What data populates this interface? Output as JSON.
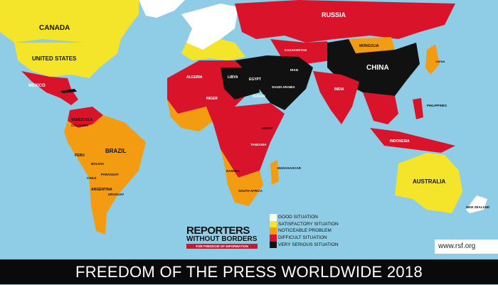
{
  "colors": {
    "ocean": "#8fcde6",
    "good": "#ffffff",
    "satisfactory": "#f5e52a",
    "noticeable": "#f39c12",
    "difficult": "#d9142a",
    "very_serious": "#111111"
  },
  "countries": {
    "canada": "CANADA",
    "united_states": "UNITED STATES",
    "mexico": "MEXICO",
    "brazil": "BRAZIL",
    "peru": "PERU",
    "argentina": "ARGENTINA",
    "chile": "CHILE",
    "russia": "RUSSIA",
    "china": "CHINA",
    "india": "INDIA",
    "mongolia": "MONGOLIA",
    "kazakhstan": "KAZAKHSTAN",
    "libya": "LIBYA",
    "egypt": "EGYPT",
    "sudan": "SUDAN",
    "algeria": "ALGERIA",
    "niger": "NIGER",
    "indonesia": "INDONESIA",
    "australia": "AUSTRALIA",
    "new_zealand": "NEW ZEALAND",
    "madagascar": "MADAGASCAR",
    "namibia": "NAMIBIA",
    "south_africa": "SOUTH AFRICA",
    "tanzania": "TANZANIA",
    "kenya": "KENYA",
    "venezuela": "VENEZUELA",
    "colombia": "COLOMBIA",
    "japan": "JAPAN",
    "philippines": "PHILIPPINES",
    "saudi_arabia": "SAUDI ARABIA",
    "iran": "IRAN",
    "bolivia": "BOLIVIA",
    "paraguay": "PARAGUAY",
    "uruguay": "URUGUAY"
  },
  "legend": [
    {
      "label": "GOOD SITUATION",
      "color": "#ffffff"
    },
    {
      "label": "SATISFACTORY SITUATION",
      "color": "#f5e52a"
    },
    {
      "label": "NOTICEABLE PROBLEM",
      "color": "#f39c12"
    },
    {
      "label": "DIFFICULT SITUATION",
      "color": "#d9142a"
    },
    {
      "label": "VERY SERIOUS SITUATION",
      "color": "#111111"
    }
  ],
  "logo": {
    "line1": "REPORTERS",
    "line2": "WITHOUT BORDERS",
    "tagline": "FOR FREEDOM OF INFORMATION"
  },
  "url": "www.rsf.org",
  "title": "FREEDOM OF THE PRESS WORLDWIDE 2018"
}
